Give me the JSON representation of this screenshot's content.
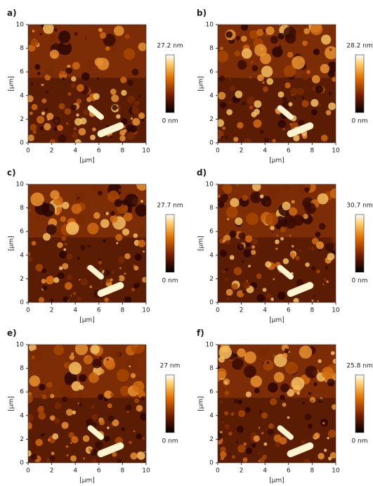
{
  "panels": [
    {
      "label": "a)",
      "xlabel": "[µm]",
      "ylabel": "[µm]",
      "xlim": [
        0,
        10
      ],
      "ylim": [
        0,
        10
      ],
      "xticks": [
        0,
        2,
        4,
        6,
        8,
        10
      ],
      "yticks": [
        0,
        2,
        4,
        6,
        8,
        10
      ],
      "colorbar": {
        "max": "27.2 nm",
        "min": "0 nm"
      }
    },
    {
      "label": "b)",
      "xlabel": "[µm]",
      "ylabel": "[µm]",
      "xlim": [
        0,
        10
      ],
      "ylim": [
        0,
        10
      ],
      "xticks": [
        0,
        2,
        4,
        6,
        8,
        10
      ],
      "yticks": [
        0,
        2,
        4,
        6,
        8,
        10
      ],
      "colorbar": {
        "max": "28.2 nm",
        "min": "0 nm"
      }
    },
    {
      "label": "c)",
      "xlabel": "[µm]",
      "ylabel": "[µm]",
      "xlim": [
        0,
        10
      ],
      "ylim": [
        0,
        10
      ],
      "xticks": [
        0,
        2,
        4,
        6,
        8,
        10
      ],
      "yticks": [
        0,
        2,
        4,
        6,
        8,
        10
      ],
      "colorbar": {
        "max": "27.7 nm",
        "min": "0 nm"
      }
    },
    {
      "label": "d)",
      "xlabel": "[µm]",
      "ylabel": "[µm]",
      "xlim": [
        0,
        10
      ],
      "ylim": [
        0,
        10
      ],
      "xticks": [
        0,
        2,
        4,
        6,
        8,
        10
      ],
      "yticks": [
        0,
        2,
        4,
        6,
        8,
        10
      ],
      "colorbar": {
        "max": "30.7 nm",
        "min": "0 nm"
      }
    },
    {
      "label": "e)",
      "xlabel": "[µm]",
      "ylabel": "[µm]",
      "xlim": [
        0,
        10
      ],
      "ylim": [
        0,
        10
      ],
      "xticks": [
        0,
        2,
        4,
        6,
        8,
        10
      ],
      "yticks": [
        0,
        2,
        4,
        6,
        8,
        10
      ],
      "colorbar": {
        "max": "27 nm",
        "min": "0 nm"
      }
    },
    {
      "label": "f)",
      "xlabel": "[µm]",
      "ylabel": "[µm]",
      "xlim": [
        0,
        10
      ],
      "ylim": [
        0,
        10
      ],
      "xticks": [
        0,
        2,
        4,
        6,
        8,
        10
      ],
      "yticks": [
        0,
        2,
        4,
        6,
        8,
        10
      ],
      "colorbar": {
        "max": "25.8 nm",
        "min": "0 nm"
      }
    }
  ]
}
